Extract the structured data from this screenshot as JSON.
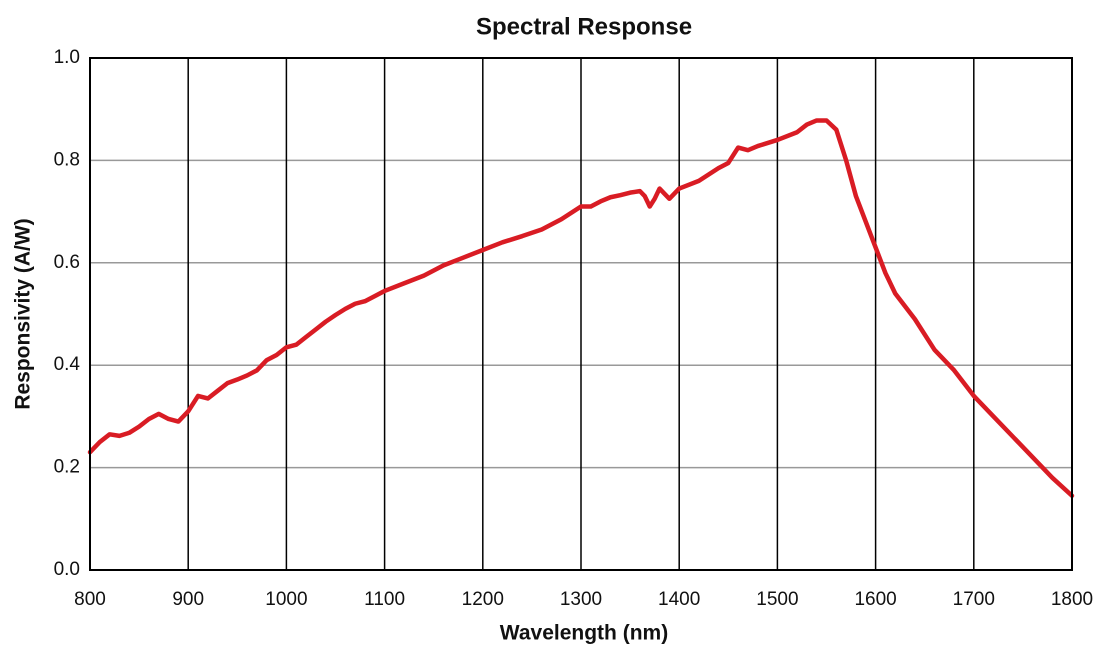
{
  "chart_data": {
    "type": "line",
    "title": "Spectral Response",
    "x_label": "Wavelength (nm)",
    "y_label": "Responsivity (A/W)",
    "x": [
      800,
      810,
      820,
      830,
      840,
      850,
      860,
      870,
      880,
      890,
      900,
      910,
      920,
      930,
      940,
      950,
      960,
      970,
      980,
      990,
      1000,
      1010,
      1020,
      1030,
      1040,
      1050,
      1060,
      1070,
      1080,
      1090,
      1100,
      1120,
      1140,
      1160,
      1180,
      1200,
      1220,
      1240,
      1260,
      1280,
      1300,
      1310,
      1320,
      1330,
      1340,
      1350,
      1360,
      1365,
      1370,
      1375,
      1380,
      1385,
      1390,
      1400,
      1420,
      1440,
      1450,
      1460,
      1470,
      1480,
      1500,
      1520,
      1530,
      1540,
      1550,
      1560,
      1570,
      1580,
      1590,
      1600,
      1610,
      1620,
      1640,
      1660,
      1680,
      1700,
      1720,
      1740,
      1760,
      1780,
      1800
    ],
    "series": [
      {
        "name": "Responsivity",
        "color": "#d91c24",
        "values": [
          0.23,
          0.25,
          0.265,
          0.262,
          0.268,
          0.28,
          0.295,
          0.305,
          0.295,
          0.29,
          0.31,
          0.34,
          0.335,
          0.35,
          0.365,
          0.372,
          0.38,
          0.39,
          0.41,
          0.42,
          0.435,
          0.44,
          0.455,
          0.47,
          0.485,
          0.498,
          0.51,
          0.52,
          0.525,
          0.535,
          0.545,
          0.56,
          0.575,
          0.595,
          0.61,
          0.625,
          0.64,
          0.652,
          0.665,
          0.685,
          0.71,
          0.71,
          0.72,
          0.728,
          0.732,
          0.737,
          0.74,
          0.73,
          0.71,
          0.725,
          0.745,
          0.735,
          0.725,
          0.745,
          0.76,
          0.785,
          0.795,
          0.825,
          0.82,
          0.828,
          0.84,
          0.855,
          0.87,
          0.878,
          0.878,
          0.86,
          0.8,
          0.73,
          0.68,
          0.63,
          0.58,
          0.54,
          0.49,
          0.43,
          0.39,
          0.34,
          0.3,
          0.26,
          0.22,
          0.18,
          0.145
        ]
      }
    ],
    "xlim": [
      800,
      1800
    ],
    "xticks": [
      800,
      900,
      1000,
      1100,
      1200,
      1300,
      1400,
      1500,
      1600,
      1700,
      1800
    ],
    "ylim": [
      0,
      1
    ],
    "yticks": [
      {
        "value": 0,
        "label": "0.0"
      },
      0.2,
      0.4,
      0.6,
      0.8,
      {
        "value": 1,
        "label": "1.0"
      }
    ],
    "grid": true
  }
}
